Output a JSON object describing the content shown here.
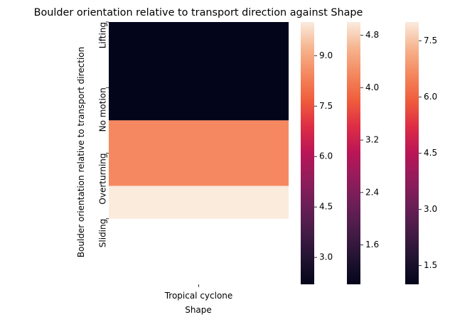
{
  "chart_data": {
    "type": "heatmap",
    "title": "Boulder orientation relative to transport direction against Shape",
    "xlabel": "Shape",
    "ylabel": "Boulder orientation relative to transport direction",
    "x_categories": [
      "Tropical cyclone"
    ],
    "y_categories": [
      "Lifting",
      "No motion",
      "Overturning",
      "Sliding"
    ],
    "row_boundaries": [
      0,
      1.5,
      2.5,
      3
    ],
    "cells": [
      {
        "x": "Tropical cyclone",
        "y_range": [
          0,
          1.5
        ],
        "color": "#03051a"
      },
      {
        "x": "Tropical cyclone",
        "y_range": [
          1.5,
          2.5
        ],
        "color": "#f58860"
      },
      {
        "x": "Tropical cyclone",
        "y_range": [
          2.5,
          3
        ],
        "color": "#faebdd"
      }
    ],
    "colorbars": [
      {
        "range": [
          2.2,
          10.0
        ],
        "ticks": [
          "3.0",
          "4.5",
          "6.0",
          "7.5",
          "9.0"
        ],
        "tick_values": [
          3.0,
          4.5,
          6.0,
          7.5,
          9.0
        ]
      },
      {
        "range": [
          1.0,
          5.0
        ],
        "ticks": [
          "1.6",
          "2.4",
          "3.2",
          "4.0",
          "4.8"
        ],
        "tick_values": [
          1.6,
          2.4,
          3.2,
          4.0,
          4.8
        ]
      },
      {
        "range": [
          1.0,
          8.0
        ],
        "ticks": [
          "1.5",
          "3.0",
          "4.5",
          "6.0",
          "7.5"
        ],
        "tick_values": [
          1.5,
          3.0,
          4.5,
          6.0,
          7.5
        ]
      }
    ],
    "colormap": "rocket",
    "grid": false
  }
}
